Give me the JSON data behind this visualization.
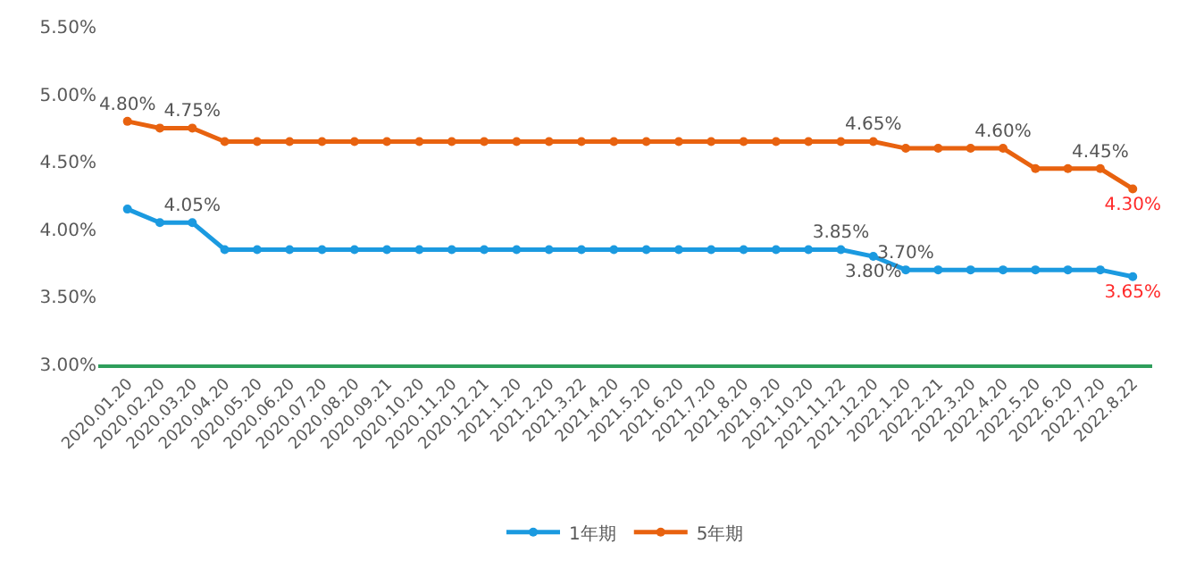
{
  "chart_data": {
    "type": "line",
    "categories": [
      "2020.01.20",
      "2020.02.20",
      "2020.03.20",
      "2020.04.20",
      "2020.05.20",
      "2020.06.20",
      "2020.07.20",
      "2020.08.20",
      "2020.09.21",
      "2020.10.20",
      "2020.11.20",
      "2020.12.21",
      "2021.1.20",
      "2021.2.20",
      "2021.3.22",
      "2021.4.20",
      "2021.5.20",
      "2021.6.20",
      "2021.7.20",
      "2021.8.20",
      "2021.9.20",
      "2021.10.20",
      "2021.11.22",
      "2021.12.20",
      "2022.1.20",
      "2022.2.21",
      "2022.3.20",
      "2022.4.20",
      "2022.5.20",
      "2022.6.20",
      "2022.7.20",
      "2022.8.22"
    ],
    "series": [
      {
        "name": "1年期",
        "color": "#1b9ae0",
        "values": [
          4.15,
          4.05,
          4.05,
          3.85,
          3.85,
          3.85,
          3.85,
          3.85,
          3.85,
          3.85,
          3.85,
          3.85,
          3.85,
          3.85,
          3.85,
          3.85,
          3.85,
          3.85,
          3.85,
          3.85,
          3.85,
          3.85,
          3.85,
          3.8,
          3.7,
          3.7,
          3.7,
          3.7,
          3.7,
          3.7,
          3.7,
          3.65
        ],
        "value_labels": [
          null,
          null,
          "4.05%",
          null,
          null,
          null,
          null,
          null,
          null,
          null,
          null,
          null,
          null,
          null,
          null,
          null,
          null,
          null,
          null,
          null,
          null,
          null,
          "3.85%",
          "3.80%",
          "3.70%",
          null,
          null,
          null,
          null,
          null,
          null,
          "3.65%"
        ]
      },
      {
        "name": "5年期",
        "color": "#e8620f",
        "values": [
          4.8,
          4.75,
          4.75,
          4.65,
          4.65,
          4.65,
          4.65,
          4.65,
          4.65,
          4.65,
          4.65,
          4.65,
          4.65,
          4.65,
          4.65,
          4.65,
          4.65,
          4.65,
          4.65,
          4.65,
          4.65,
          4.65,
          4.65,
          4.65,
          4.6,
          4.6,
          4.6,
          4.6,
          4.45,
          4.45,
          4.45,
          4.3
        ],
        "value_labels": [
          "4.80%",
          null,
          "4.75%",
          null,
          null,
          null,
          null,
          null,
          null,
          null,
          null,
          null,
          null,
          null,
          null,
          null,
          null,
          null,
          null,
          null,
          null,
          null,
          null,
          "4.65%",
          null,
          null,
          null,
          "4.60%",
          null,
          null,
          "4.45%",
          "4.30%"
        ]
      }
    ],
    "ylim": [
      3.0,
      5.5
    ],
    "yticks": [
      {
        "value": 3.0,
        "label": "3.00%"
      },
      {
        "value": 3.5,
        "label": "3.50%"
      },
      {
        "value": 4.0,
        "label": "4.00%"
      },
      {
        "value": 4.5,
        "label": "4.50%"
      },
      {
        "value": 5.0,
        "label": "5.00%"
      },
      {
        "value": 5.5,
        "label": "5.50%"
      }
    ],
    "grid": false,
    "legend": "bottom",
    "marker": "circle",
    "line_style": "solid"
  }
}
